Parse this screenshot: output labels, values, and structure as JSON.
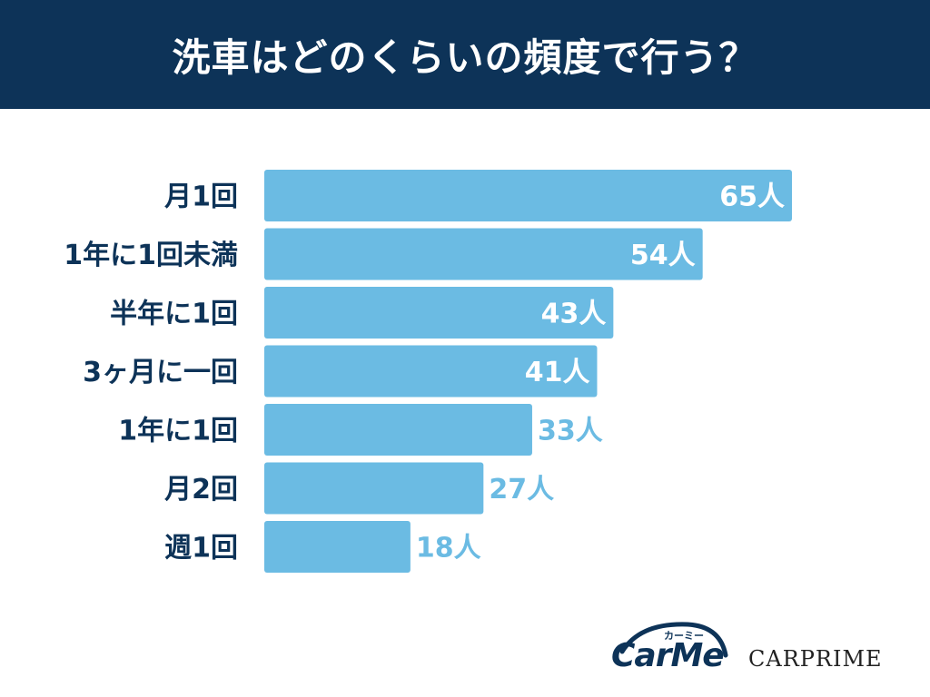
{
  "title": "洗車はどのくらいの頻度で行う？",
  "chart_data": {
    "type": "bar",
    "orientation": "horizontal",
    "categories": [
      "月1回",
      "1年に1回未満",
      "半年に1回",
      "3ヶ月に一回",
      "1年に1回",
      "月2回",
      "週1回"
    ],
    "values": [
      65,
      54,
      43,
      41,
      33,
      27,
      18
    ],
    "value_labels": [
      "65人",
      "54人",
      "43人",
      "41人",
      "33人",
      "27人",
      "18人"
    ],
    "unit": "人",
    "xlim": [
      0,
      65
    ],
    "grid": false,
    "legend": "none",
    "bar_color": "#6bbbe3",
    "label_color": "#0d3358"
  },
  "logos": {
    "carme_text": "CarMe",
    "carme_kana": "カーミー",
    "carprime_text": "CARPRIME"
  }
}
